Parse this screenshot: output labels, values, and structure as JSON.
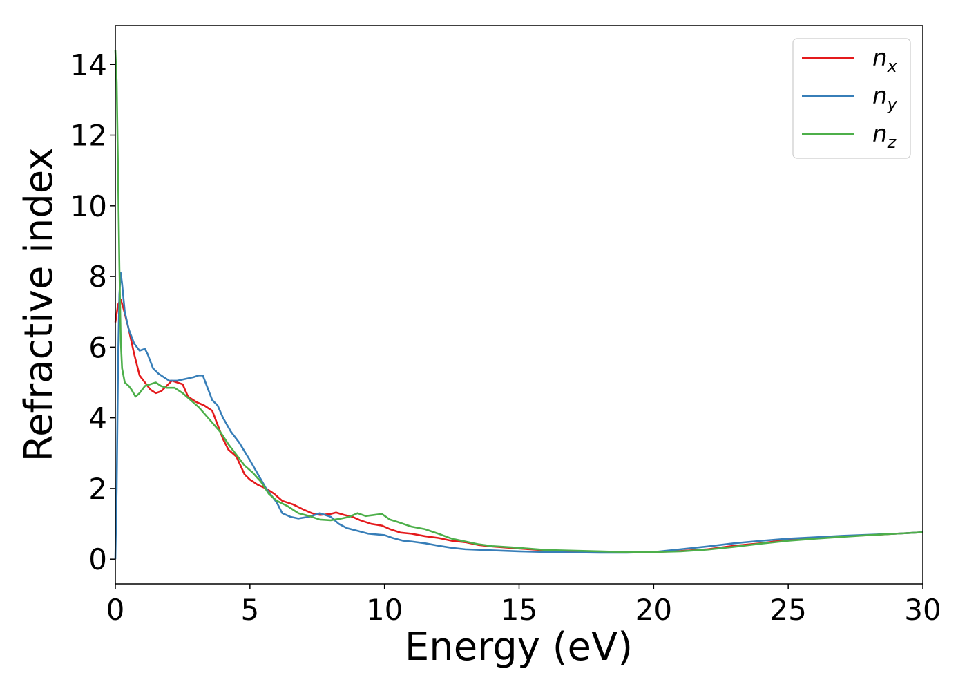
{
  "chart_data": {
    "type": "line",
    "title": "",
    "xlabel": "Energy (eV)",
    "ylabel": "Refractive index",
    "xlim": [
      0,
      30
    ],
    "ylim": [
      -0.7,
      15.1
    ],
    "xticks": [
      0,
      5,
      10,
      15,
      20,
      25,
      30
    ],
    "yticks": [
      0,
      2,
      4,
      6,
      8,
      10,
      12,
      14
    ],
    "grid": false,
    "legend_position": "top-right",
    "series": [
      {
        "name": "n_x",
        "label_main": "n",
        "label_sub": "x",
        "color": "#e41a1c",
        "points": [
          [
            0,
            6.7
          ],
          [
            0.1,
            7.2
          ],
          [
            0.2,
            7.35
          ],
          [
            0.3,
            7.1
          ],
          [
            0.5,
            6.5
          ],
          [
            0.7,
            5.8
          ],
          [
            0.9,
            5.2
          ],
          [
            1.1,
            5.0
          ],
          [
            1.3,
            4.8
          ],
          [
            1.5,
            4.7
          ],
          [
            1.7,
            4.75
          ],
          [
            1.9,
            4.9
          ],
          [
            2.1,
            5.05
          ],
          [
            2.3,
            5.0
          ],
          [
            2.5,
            4.95
          ],
          [
            2.7,
            4.6
          ],
          [
            3.0,
            4.45
          ],
          [
            3.3,
            4.35
          ],
          [
            3.6,
            4.2
          ],
          [
            3.8,
            3.8
          ],
          [
            4.0,
            3.4
          ],
          [
            4.2,
            3.1
          ],
          [
            4.5,
            2.9
          ],
          [
            4.8,
            2.4
          ],
          [
            5.0,
            2.25
          ],
          [
            5.3,
            2.1
          ],
          [
            5.6,
            2.0
          ],
          [
            5.9,
            1.85
          ],
          [
            6.2,
            1.65
          ],
          [
            6.6,
            1.55
          ],
          [
            7.0,
            1.4
          ],
          [
            7.3,
            1.3
          ],
          [
            7.6,
            1.25
          ],
          [
            8.0,
            1.28
          ],
          [
            8.2,
            1.32
          ],
          [
            8.5,
            1.25
          ],
          [
            8.8,
            1.2
          ],
          [
            9.1,
            1.1
          ],
          [
            9.5,
            1.0
          ],
          [
            9.9,
            0.95
          ],
          [
            10.2,
            0.85
          ],
          [
            10.6,
            0.75
          ],
          [
            11.0,
            0.72
          ],
          [
            11.5,
            0.65
          ],
          [
            12.0,
            0.6
          ],
          [
            12.5,
            0.52
          ],
          [
            13.0,
            0.48
          ],
          [
            13.5,
            0.4
          ],
          [
            14.0,
            0.36
          ],
          [
            15.0,
            0.3
          ],
          [
            16.0,
            0.25
          ],
          [
            17.0,
            0.22
          ],
          [
            18.0,
            0.2
          ],
          [
            19.0,
            0.2
          ],
          [
            20.0,
            0.2
          ],
          [
            21.0,
            0.23
          ],
          [
            22.0,
            0.28
          ],
          [
            23.0,
            0.38
          ],
          [
            24.0,
            0.45
          ],
          [
            25.0,
            0.55
          ],
          [
            26.0,
            0.6
          ],
          [
            27.0,
            0.65
          ],
          [
            28.0,
            0.68
          ],
          [
            29.0,
            0.72
          ],
          [
            30.0,
            0.76
          ]
        ]
      },
      {
        "name": "n_y",
        "label_main": "n",
        "label_sub": "y",
        "color": "#377eb8",
        "points": [
          [
            0,
            0
          ],
          [
            0.05,
            2.0
          ],
          [
            0.1,
            5.5
          ],
          [
            0.15,
            7.5
          ],
          [
            0.2,
            8.1
          ],
          [
            0.25,
            7.8
          ],
          [
            0.35,
            7.0
          ],
          [
            0.5,
            6.5
          ],
          [
            0.7,
            6.1
          ],
          [
            0.9,
            5.9
          ],
          [
            1.1,
            5.95
          ],
          [
            1.2,
            5.8
          ],
          [
            1.4,
            5.4
          ],
          [
            1.6,
            5.25
          ],
          [
            1.8,
            5.15
          ],
          [
            2.0,
            5.05
          ],
          [
            2.3,
            5.05
          ],
          [
            2.6,
            5.1
          ],
          [
            2.9,
            5.15
          ],
          [
            3.1,
            5.2
          ],
          [
            3.25,
            5.2
          ],
          [
            3.4,
            4.9
          ],
          [
            3.6,
            4.5
          ],
          [
            3.8,
            4.35
          ],
          [
            4.0,
            4.0
          ],
          [
            4.3,
            3.6
          ],
          [
            4.6,
            3.3
          ],
          [
            5.0,
            2.8
          ],
          [
            5.3,
            2.4
          ],
          [
            5.6,
            2.0
          ],
          [
            6.0,
            1.6
          ],
          [
            6.2,
            1.3
          ],
          [
            6.5,
            1.2
          ],
          [
            6.8,
            1.15
          ],
          [
            7.2,
            1.2
          ],
          [
            7.6,
            1.3
          ],
          [
            8.0,
            1.2
          ],
          [
            8.3,
            1.0
          ],
          [
            8.6,
            0.88
          ],
          [
            9.0,
            0.8
          ],
          [
            9.4,
            0.72
          ],
          [
            10.0,
            0.68
          ],
          [
            10.3,
            0.6
          ],
          [
            10.7,
            0.52
          ],
          [
            11.0,
            0.5
          ],
          [
            11.5,
            0.45
          ],
          [
            12.0,
            0.38
          ],
          [
            12.5,
            0.32
          ],
          [
            13.0,
            0.28
          ],
          [
            14.0,
            0.25
          ],
          [
            15.0,
            0.22
          ],
          [
            16.0,
            0.2
          ],
          [
            17.0,
            0.19
          ],
          [
            18.0,
            0.18
          ],
          [
            19.0,
            0.18
          ],
          [
            20.0,
            0.2
          ],
          [
            21.0,
            0.28
          ],
          [
            22.0,
            0.36
          ],
          [
            23.0,
            0.45
          ],
          [
            24.0,
            0.52
          ],
          [
            25.0,
            0.58
          ],
          [
            26.0,
            0.62
          ],
          [
            27.0,
            0.66
          ],
          [
            28.0,
            0.69
          ],
          [
            29.0,
            0.72
          ],
          [
            30.0,
            0.76
          ]
        ]
      },
      {
        "name": "n_z",
        "label_main": "n",
        "label_sub": "z",
        "color": "#4daf4a",
        "points": [
          [
            0,
            14.4
          ],
          [
            0.05,
            13.5
          ],
          [
            0.1,
            11.0
          ],
          [
            0.15,
            8.3
          ],
          [
            0.2,
            6.2
          ],
          [
            0.25,
            5.4
          ],
          [
            0.35,
            5.0
          ],
          [
            0.5,
            4.9
          ],
          [
            0.6,
            4.8
          ],
          [
            0.75,
            4.6
          ],
          [
            0.9,
            4.7
          ],
          [
            1.1,
            4.9
          ],
          [
            1.3,
            4.95
          ],
          [
            1.5,
            5.0
          ],
          [
            1.7,
            4.9
          ],
          [
            1.9,
            4.85
          ],
          [
            2.2,
            4.85
          ],
          [
            2.5,
            4.7
          ],
          [
            2.8,
            4.5
          ],
          [
            3.1,
            4.3
          ],
          [
            3.5,
            3.95
          ],
          [
            3.9,
            3.6
          ],
          [
            4.2,
            3.25
          ],
          [
            4.5,
            2.95
          ],
          [
            4.8,
            2.65
          ],
          [
            5.1,
            2.45
          ],
          [
            5.4,
            2.2
          ],
          [
            5.7,
            1.85
          ],
          [
            6.0,
            1.65
          ],
          [
            6.4,
            1.5
          ],
          [
            6.8,
            1.3
          ],
          [
            7.2,
            1.22
          ],
          [
            7.6,
            1.12
          ],
          [
            8.0,
            1.1
          ],
          [
            8.4,
            1.15
          ],
          [
            8.7,
            1.2
          ],
          [
            9.0,
            1.3
          ],
          [
            9.3,
            1.22
          ],
          [
            9.6,
            1.25
          ],
          [
            9.9,
            1.28
          ],
          [
            10.2,
            1.12
          ],
          [
            10.5,
            1.05
          ],
          [
            11.0,
            0.92
          ],
          [
            11.5,
            0.85
          ],
          [
            12.0,
            0.72
          ],
          [
            12.5,
            0.58
          ],
          [
            13.0,
            0.5
          ],
          [
            13.5,
            0.42
          ],
          [
            14.0,
            0.37
          ],
          [
            15.0,
            0.32
          ],
          [
            16.0,
            0.26
          ],
          [
            17.0,
            0.24
          ],
          [
            18.0,
            0.22
          ],
          [
            19.0,
            0.2
          ],
          [
            20.0,
            0.2
          ],
          [
            21.0,
            0.22
          ],
          [
            22.0,
            0.27
          ],
          [
            23.0,
            0.35
          ],
          [
            24.0,
            0.44
          ],
          [
            25.0,
            0.52
          ],
          [
            26.0,
            0.58
          ],
          [
            27.0,
            0.63
          ],
          [
            28.0,
            0.68
          ],
          [
            29.0,
            0.72
          ],
          [
            30.0,
            0.76
          ]
        ]
      }
    ]
  }
}
